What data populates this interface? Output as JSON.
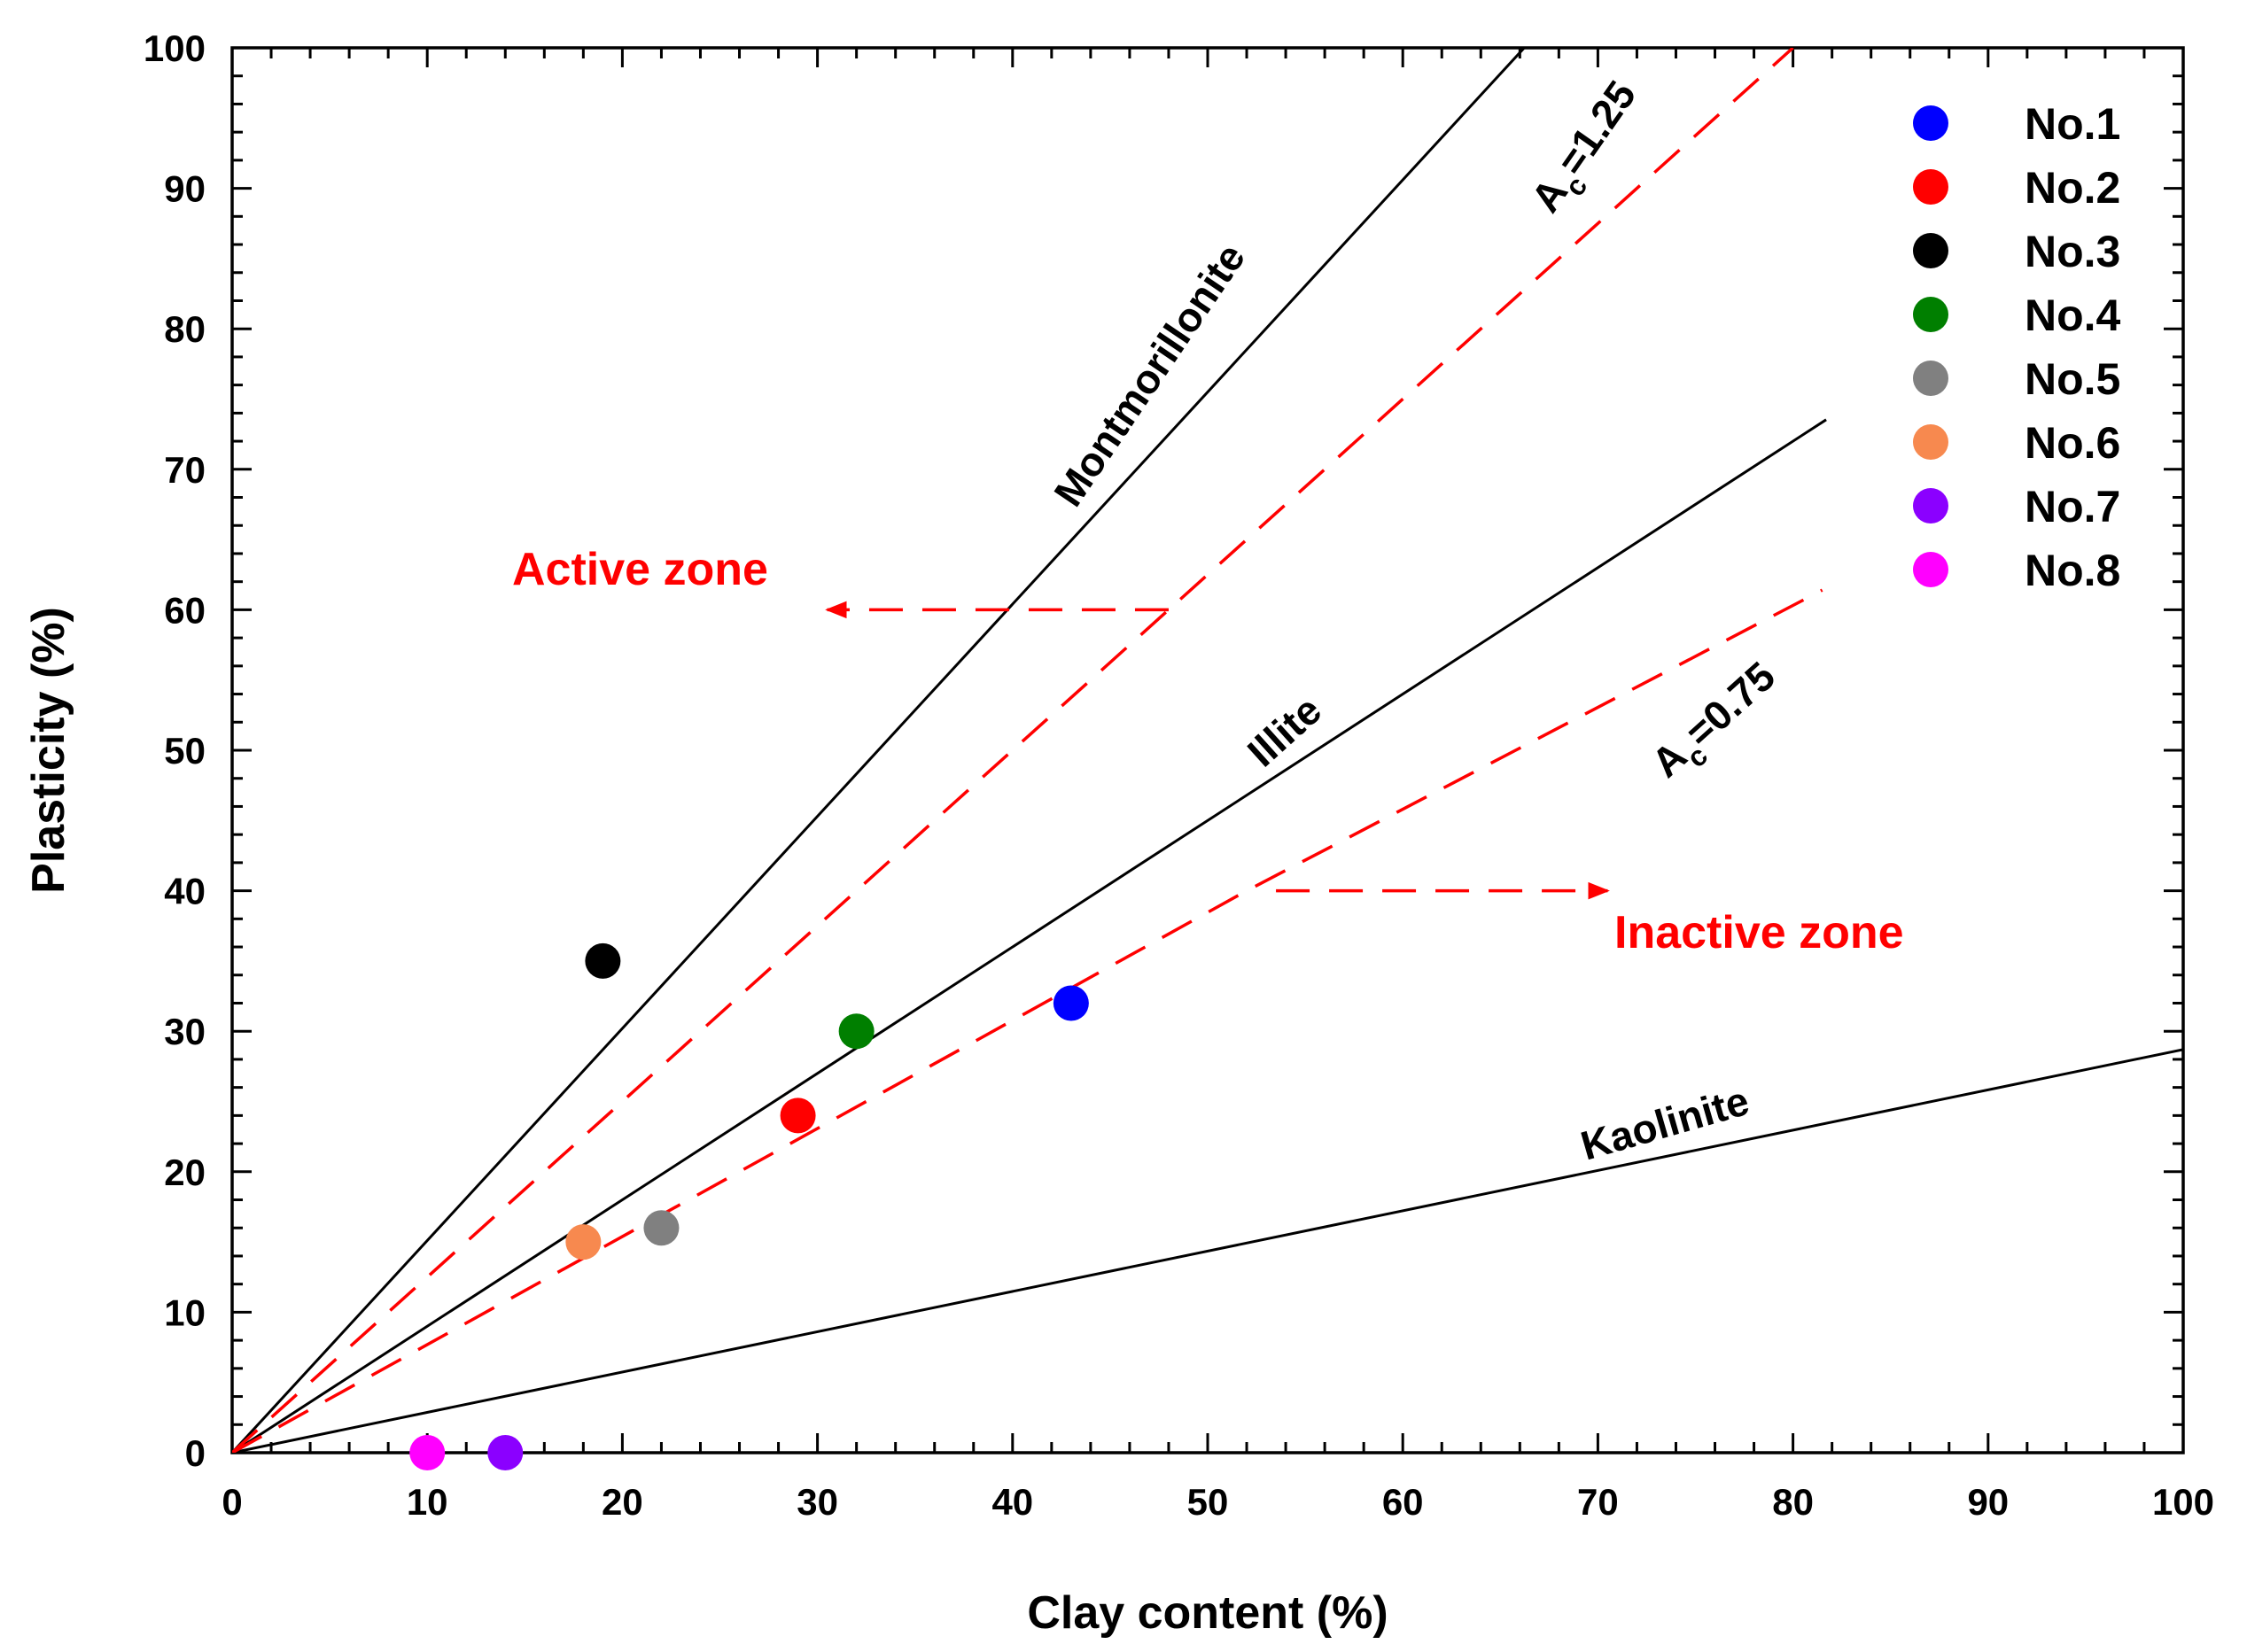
{
  "chart_data": {
    "type": "scatter",
    "title": "",
    "xlabel": "Clay content (%)",
    "ylabel": "Plasticity (%)",
    "xlim": [
      0,
      100
    ],
    "ylim": [
      0,
      100
    ],
    "xticks": [
      "0",
      "10",
      "20",
      "30",
      "40",
      "50",
      "60",
      "70",
      "80",
      "90",
      "100"
    ],
    "yticks": [
      "0",
      "10",
      "20",
      "30",
      "40",
      "50",
      "60",
      "70",
      "80",
      "90",
      "100"
    ],
    "grid": false,
    "legend_position": "top-right",
    "series": [
      {
        "name": "No.1",
        "color": "#0000ff",
        "x": 43,
        "y": 32
      },
      {
        "name": "No.2",
        "color": "#ff0000",
        "x": 29,
        "y": 24
      },
      {
        "name": "No.3",
        "color": "#000000",
        "x": 19,
        "y": 35
      },
      {
        "name": "No.4",
        "color": "#007f00",
        "x": 32,
        "y": 30
      },
      {
        "name": "No.5",
        "color": "#808080",
        "x": 22,
        "y": 16
      },
      {
        "name": "No.6",
        "color": "#f7894f",
        "x": 18,
        "y": 15
      },
      {
        "name": "No.7",
        "color": "#8b00ff",
        "x": 14,
        "y": 0
      },
      {
        "name": "No.8",
        "color": "#ff00ff",
        "x": 10,
        "y": 0
      }
    ],
    "reference_lines": [
      {
        "name": "Montmorillonite",
        "slope": 1.51,
        "x_end": 66.2,
        "style": "solid",
        "color": "#000000"
      },
      {
        "name": "Illite",
        "slope": 0.9,
        "x_end": 81.7,
        "style": "solid",
        "color": "#000000"
      },
      {
        "name": "Kaolinite",
        "slope": 0.287,
        "x_end": 100,
        "style": "solid",
        "color": "#000000"
      }
    ],
    "activity_lines": [
      {
        "name": "Ac=1.25",
        "label_main": "A",
        "label_sub": "c",
        "label_rest": "=1.25",
        "points": [
          [
            0,
            0
          ],
          [
            48,
            60
          ],
          [
            80,
            100
          ]
        ],
        "style": "dashed",
        "color": "#ff0000"
      },
      {
        "name": "Ac=0.75",
        "label_main": "A",
        "label_sub": "c",
        "label_rest": "=0.75",
        "points": [
          [
            0,
            0
          ],
          [
            52,
            40
          ],
          [
            81.5,
            61.4
          ]
        ],
        "style": "dashed",
        "color": "#ff0000"
      }
    ],
    "zone_arrows": [
      {
        "label": "Active zone",
        "from": [
          48,
          60
        ],
        "to": [
          30.5,
          60
        ],
        "color": "#ff0000"
      },
      {
        "label": "Inactive zone",
        "from": [
          53.5,
          40
        ],
        "to": [
          70.5,
          40
        ],
        "color": "#ff0000"
      }
    ]
  }
}
